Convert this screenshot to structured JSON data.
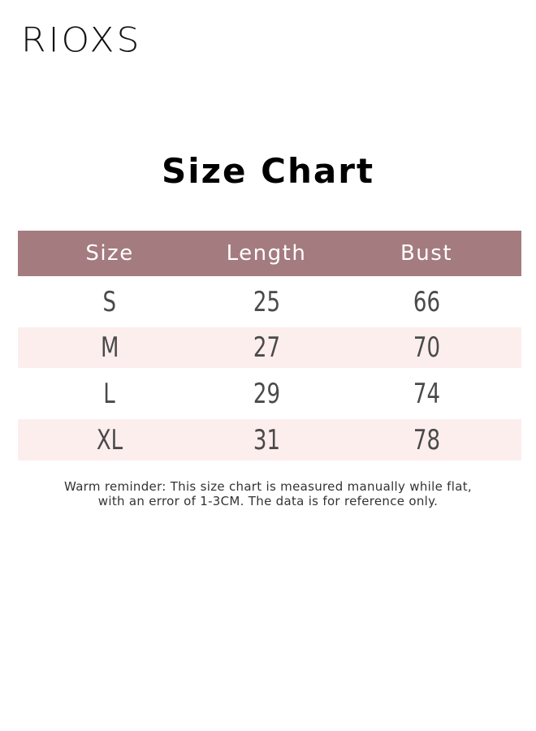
{
  "brand": {
    "logo": "RIOXS"
  },
  "title": "Size Chart",
  "table": {
    "headers": [
      "Size",
      "Length",
      "Bust"
    ],
    "rows": [
      [
        "S",
        "25",
        "66"
      ],
      [
        "M",
        "27",
        "70"
      ],
      [
        "L",
        "29",
        "74"
      ],
      [
        "XL",
        "31",
        "78"
      ]
    ],
    "header_color": "#a47b7f",
    "stripe_color": "#fdeeee"
  },
  "note": {
    "line1": "Warm reminder: This size chart is measured manually while flat,",
    "line2": "with an error of 1-3CM. The data is for reference only."
  }
}
